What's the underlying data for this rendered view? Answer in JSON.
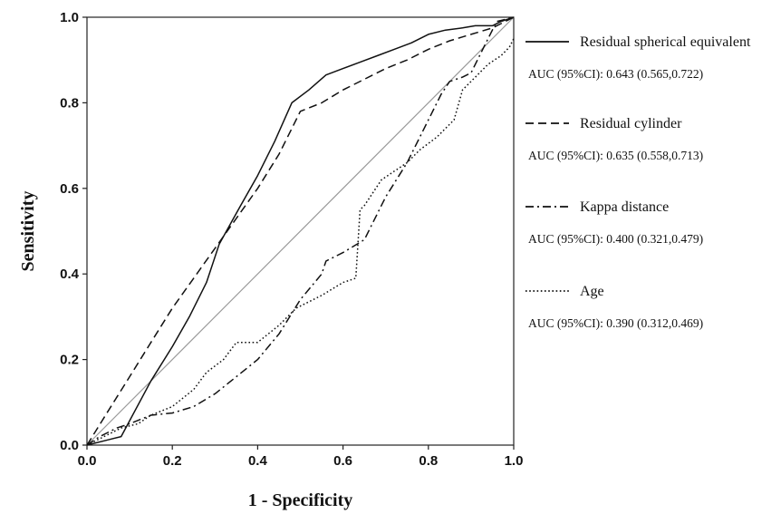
{
  "chart_data": {
    "type": "line",
    "title": "",
    "xlabel": "1 - Specificity",
    "ylabel": "Sensitivity",
    "xlim": [
      0,
      1
    ],
    "ylim": [
      0,
      1
    ],
    "xticks": [
      "0.0",
      "0.2",
      "0.4",
      "0.6",
      "0.8",
      "1.0"
    ],
    "yticks": [
      "0.0",
      "0.2",
      "0.4",
      "0.6",
      "0.8",
      "1.0"
    ],
    "grid": false,
    "legend_position": "right",
    "reference_line": {
      "x": [
        0,
        1
      ],
      "y": [
        0,
        1
      ],
      "color": "#999999"
    },
    "series": [
      {
        "name": "Residual spherical equivalent",
        "auc_label": "AUC (95%CI): 0.643 (0.565,0.722)",
        "dash": "solid",
        "x": [
          0.0,
          0.04,
          0.08,
          0.15,
          0.2,
          0.24,
          0.28,
          0.31,
          0.36,
          0.4,
          0.44,
          0.48,
          0.52,
          0.56,
          0.6,
          0.64,
          0.68,
          0.72,
          0.76,
          0.8,
          0.84,
          0.88,
          0.91,
          0.95,
          0.97,
          1.0
        ],
        "y": [
          0.0,
          0.01,
          0.02,
          0.15,
          0.23,
          0.3,
          0.38,
          0.47,
          0.56,
          0.63,
          0.71,
          0.8,
          0.83,
          0.865,
          0.88,
          0.895,
          0.91,
          0.925,
          0.94,
          0.96,
          0.97,
          0.975,
          0.98,
          0.98,
          0.99,
          1.0
        ]
      },
      {
        "name": "Residual cylinder",
        "auc_label": "AUC (95%CI): 0.635 (0.558,0.713)",
        "dash": "dashed",
        "x": [
          0.0,
          0.05,
          0.1,
          0.15,
          0.2,
          0.25,
          0.3,
          0.35,
          0.4,
          0.45,
          0.5,
          0.55,
          0.6,
          0.65,
          0.7,
          0.75,
          0.8,
          0.85,
          0.9,
          0.95,
          1.0
        ],
        "y": [
          0.0,
          0.08,
          0.16,
          0.24,
          0.32,
          0.39,
          0.46,
          0.53,
          0.6,
          0.68,
          0.78,
          0.8,
          0.83,
          0.855,
          0.88,
          0.9,
          0.925,
          0.945,
          0.96,
          0.975,
          1.0
        ]
      },
      {
        "name": "Kappa distance",
        "auc_label": "AUC (95%CI): 0.400 (0.321,0.479)",
        "dash": "dashdot",
        "x": [
          0.0,
          0.03,
          0.07,
          0.1,
          0.15,
          0.2,
          0.25,
          0.3,
          0.35,
          0.4,
          0.45,
          0.5,
          0.55,
          0.56,
          0.6,
          0.65,
          0.7,
          0.75,
          0.8,
          0.83,
          0.85,
          0.88,
          0.9,
          0.93,
          0.96,
          1.0
        ],
        "y": [
          0.0,
          0.02,
          0.04,
          0.05,
          0.07,
          0.075,
          0.09,
          0.12,
          0.16,
          0.2,
          0.26,
          0.34,
          0.4,
          0.43,
          0.45,
          0.48,
          0.58,
          0.66,
          0.76,
          0.82,
          0.85,
          0.86,
          0.87,
          0.93,
          0.99,
          1.0
        ]
      },
      {
        "name": "Age",
        "auc_label": "AUC (95%CI): 0.390 (0.312,0.469)",
        "dash": "dotted",
        "x": [
          0.0,
          0.04,
          0.08,
          0.12,
          0.15,
          0.2,
          0.25,
          0.28,
          0.32,
          0.35,
          0.4,
          0.45,
          0.49,
          0.55,
          0.6,
          0.63,
          0.64,
          0.65,
          0.69,
          0.72,
          0.75,
          0.78,
          0.82,
          0.86,
          0.88,
          0.91,
          0.94,
          0.97,
          0.99,
          1.0
        ],
        "y": [
          0.0,
          0.02,
          0.04,
          0.05,
          0.07,
          0.09,
          0.13,
          0.17,
          0.2,
          0.24,
          0.24,
          0.28,
          0.32,
          0.35,
          0.38,
          0.39,
          0.55,
          0.56,
          0.62,
          0.64,
          0.66,
          0.69,
          0.72,
          0.76,
          0.83,
          0.86,
          0.89,
          0.91,
          0.93,
          0.95
        ]
      }
    ]
  }
}
